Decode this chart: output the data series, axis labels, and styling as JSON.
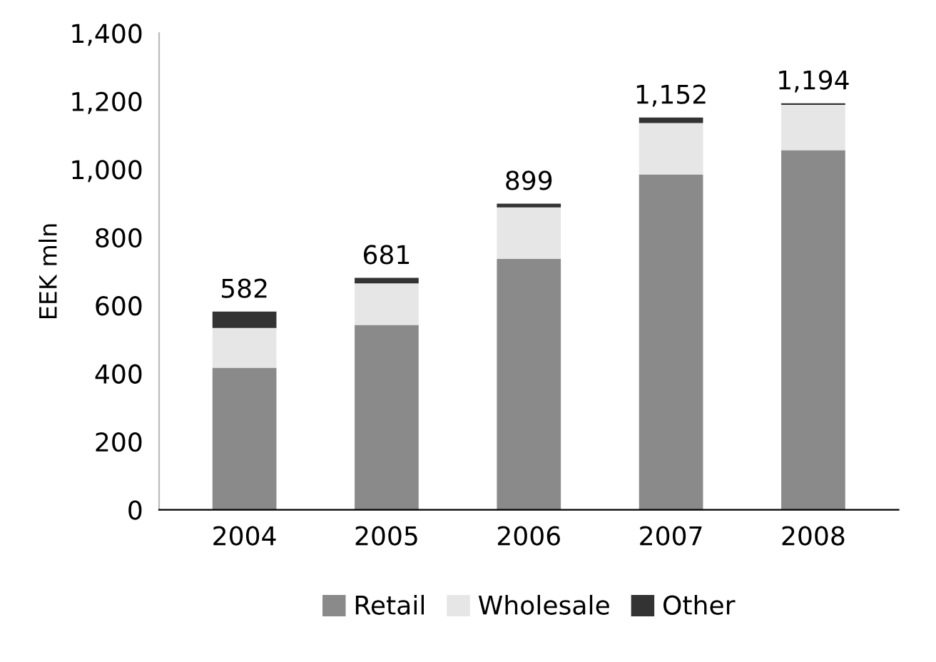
{
  "chart_data": {
    "type": "bar",
    "stacked": true,
    "ylabel": "EEK mln",
    "categories": [
      "2004",
      "2005",
      "2006",
      "2007",
      "2008"
    ],
    "series": [
      {
        "name": "Retail",
        "color": "#8a8a8a",
        "values": [
          417,
          543,
          737,
          985,
          1056
        ]
      },
      {
        "name": "Wholesale",
        "color": "#e6e6e6",
        "values": [
          117,
          122,
          151,
          151,
          133
        ]
      },
      {
        "name": "Other",
        "color": "#333333",
        "values": [
          48,
          16,
          11,
          16,
          5
        ]
      }
    ],
    "totals": [
      "582",
      "681",
      "899",
      "1,152",
      "1,194"
    ],
    "ylim": [
      0,
      1400
    ],
    "yticks": [
      {
        "value": 0,
        "label": "0"
      },
      {
        "value": 200,
        "label": "200"
      },
      {
        "value": 400,
        "label": "400"
      },
      {
        "value": 600,
        "label": "600"
      },
      {
        "value": 800,
        "label": "800"
      },
      {
        "value": 1000,
        "label": "1,000"
      },
      {
        "value": 1200,
        "label": "1,200"
      },
      {
        "value": 1400,
        "label": "1,400"
      }
    ],
    "grid": false,
    "legend": "bottom"
  }
}
